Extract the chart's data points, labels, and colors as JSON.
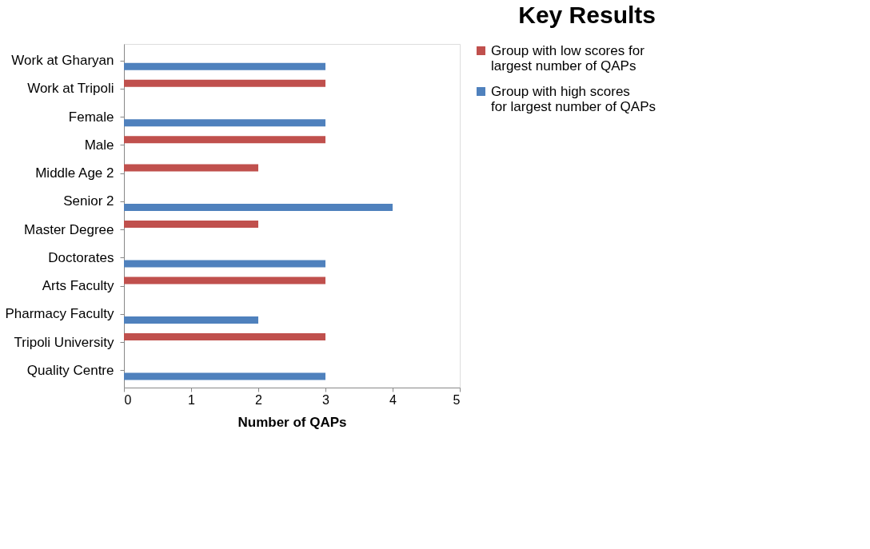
{
  "chart_data": {
    "type": "bar",
    "title": "Key Results",
    "orientation": "horizontal",
    "xlabel": "Number of QAPs",
    "categories": [
      "Work at Gharyan",
      "Work at Tripoli",
      "Female",
      "Male",
      "Middle Age 2",
      "Senior 2",
      "Master Degree",
      "Doctorates",
      "Arts Faculty",
      "Pharmacy Faculty",
      "Tripoli University",
      "Quality Centre"
    ],
    "series": [
      {
        "name": "Group with low scores for largest number of QAPs",
        "color": "#c0504d",
        "values": [
          null,
          3,
          null,
          3,
          2,
          null,
          2,
          null,
          3,
          null,
          3,
          null
        ]
      },
      {
        "name": "Group with high scores for largest number of QAPs",
        "color": "#4f81bd",
        "values": [
          3,
          null,
          3,
          null,
          null,
          4,
          null,
          3,
          null,
          2,
          null,
          3
        ]
      }
    ],
    "xlim": [
      0,
      5
    ],
    "xticks": [
      0,
      1,
      2,
      3,
      4,
      5
    ],
    "grid": false,
    "legend": "right"
  }
}
